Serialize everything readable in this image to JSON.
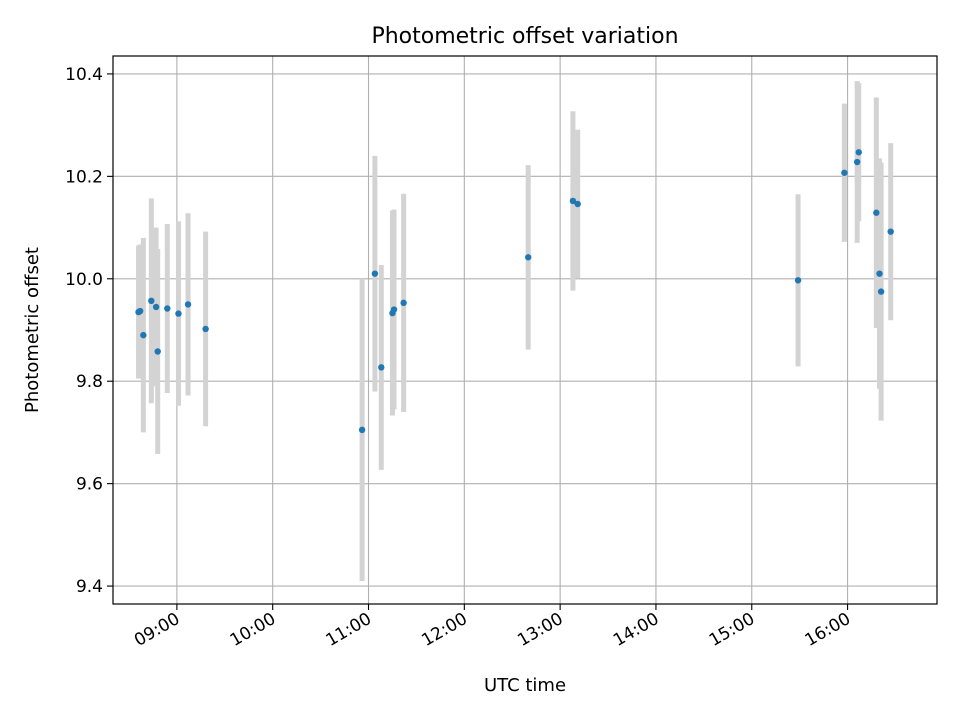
{
  "chart_data": {
    "type": "scatter",
    "title": "Photometric offset variation",
    "xlabel": "UTC time",
    "ylabel": "Photometric offset",
    "ylim": [
      9.365,
      10.435
    ],
    "xlim": [
      "08:20",
      "16:56"
    ],
    "grid": true,
    "x_ticks": [
      "09:00",
      "10:00",
      "11:00",
      "12:00",
      "13:00",
      "14:00",
      "15:00",
      "16:00"
    ],
    "y_ticks": [
      "9.4",
      "9.6",
      "9.8",
      "10.0",
      "10.2",
      "10.4"
    ],
    "colors": {
      "point": "#1f77b4",
      "errorbar": "#d3d3d3",
      "grid": "#b0b0b0"
    },
    "points": [
      {
        "x": "08:36",
        "y": 9.935,
        "err": 0.13
      },
      {
        "x": "08:37",
        "y": 9.937,
        "err": 0.13
      },
      {
        "x": "08:39",
        "y": 9.89,
        "err": 0.19
      },
      {
        "x": "08:44",
        "y": 9.957,
        "err": 0.2
      },
      {
        "x": "08:47",
        "y": 9.945,
        "err": 0.155
      },
      {
        "x": "08:48",
        "y": 9.858,
        "err": 0.2
      },
      {
        "x": "08:54",
        "y": 9.942,
        "err": 0.165
      },
      {
        "x": "09:01",
        "y": 9.932,
        "err": 0.18
      },
      {
        "x": "09:07",
        "y": 9.95,
        "err": 0.178
      },
      {
        "x": "09:18",
        "y": 9.902,
        "err": 0.19
      },
      {
        "x": "10:56",
        "y": 9.705,
        "err": 0.295
      },
      {
        "x": "11:04",
        "y": 10.01,
        "err": 0.23
      },
      {
        "x": "11:08",
        "y": 9.827,
        "err": 0.2
      },
      {
        "x": "11:15",
        "y": 9.933,
        "err": 0.2
      },
      {
        "x": "11:16",
        "y": 9.94,
        "err": 0.195
      },
      {
        "x": "11:22",
        "y": 9.953,
        "err": 0.213
      },
      {
        "x": "12:40",
        "y": 10.042,
        "err": 0.18
      },
      {
        "x": "13:08",
        "y": 10.152,
        "err": 0.175
      },
      {
        "x": "13:11",
        "y": 10.146,
        "err": 0.145
      },
      {
        "x": "15:29",
        "y": 9.997,
        "err": 0.168
      },
      {
        "x": "15:58",
        "y": 10.207,
        "err": 0.135
      },
      {
        "x": "16:06",
        "y": 10.228,
        "err": 0.158
      },
      {
        "x": "16:07",
        "y": 10.247,
        "err": 0.135
      },
      {
        "x": "16:18",
        "y": 10.129,
        "err": 0.225
      },
      {
        "x": "16:20",
        "y": 10.01,
        "err": 0.225
      },
      {
        "x": "16:21",
        "y": 9.975,
        "err": 0.252
      },
      {
        "x": "16:27",
        "y": 10.092,
        "err": 0.173
      }
    ]
  }
}
